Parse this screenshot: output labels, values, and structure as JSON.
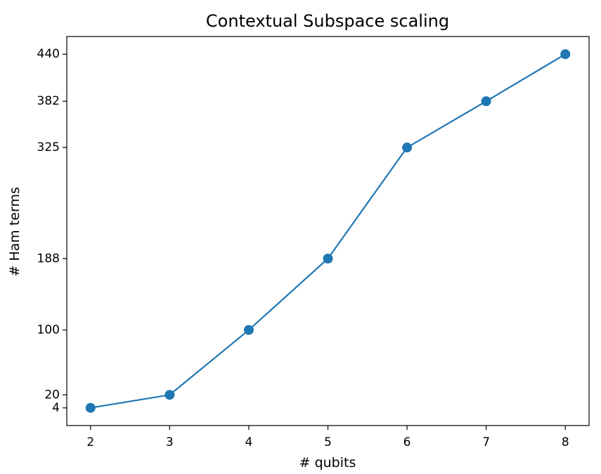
{
  "chart_data": {
    "type": "line",
    "title": "Contextual Subspace scaling",
    "xlabel": "# qubits",
    "ylabel": "# Ham terms",
    "x": [
      2,
      3,
      4,
      5,
      6,
      7,
      8
    ],
    "series": [
      {
        "values": [
          4,
          20,
          100,
          188,
          325,
          382,
          440
        ],
        "color": "#1f77b4",
        "marker": "circle"
      }
    ],
    "xticks": [
      2,
      3,
      4,
      5,
      6,
      7,
      8
    ],
    "yticks": [
      4,
      20,
      100,
      188,
      325,
      382,
      440
    ],
    "xlim": [
      1.7,
      8.3
    ],
    "ylim": [
      -17.8,
      461.8
    ],
    "grid": false,
    "legend": "none"
  }
}
